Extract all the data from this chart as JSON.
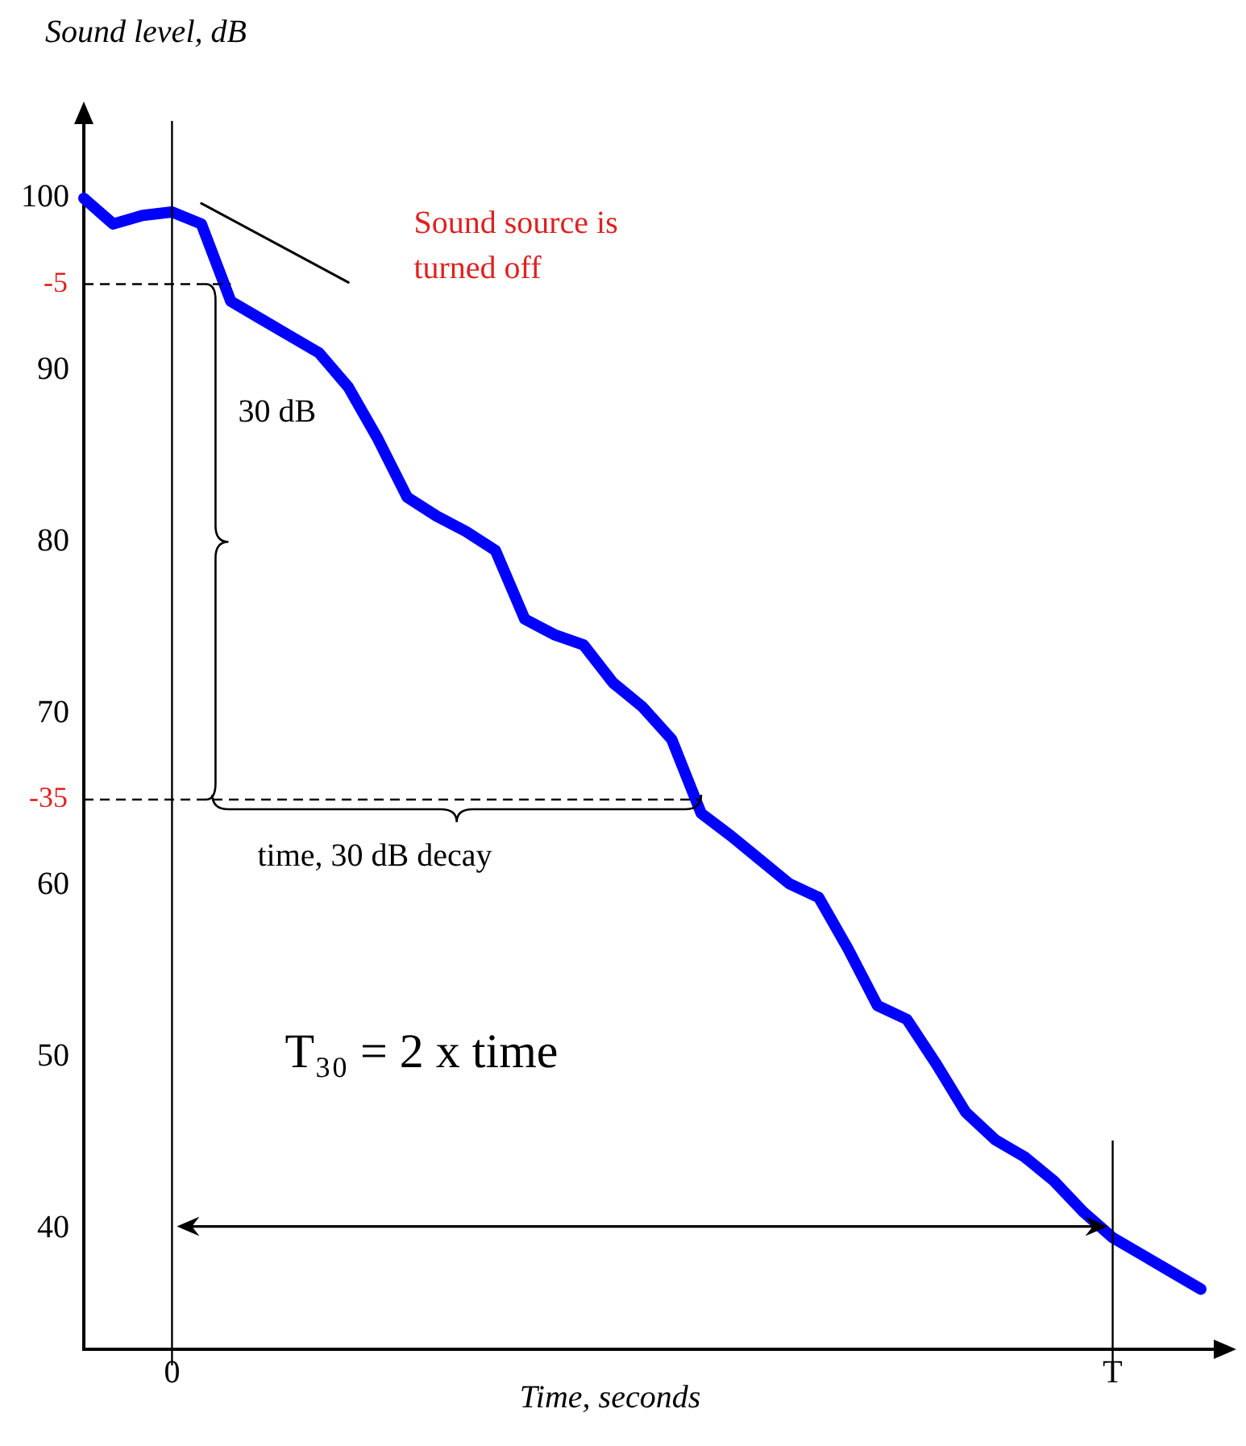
{
  "chart_data": {
    "type": "line",
    "xlabel": "Time, seconds",
    "ylabel": "Sound level, dB",
    "categories": [
      null,
      null,
      null,
      "0",
      null,
      null,
      null,
      null,
      null,
      null,
      null,
      null,
      null,
      null,
      null,
      null,
      null,
      null,
      null,
      null,
      null,
      null,
      null,
      null,
      null,
      null,
      null,
      null,
      null,
      null,
      null,
      null,
      null,
      null,
      null,
      "T",
      null,
      null,
      null
    ],
    "series": [
      {
        "color": "#0000ff",
        "values": [
          100,
          98.5,
          99,
          99.2,
          98.5,
          94,
          93,
          92,
          91,
          89,
          86,
          82.6,
          81.5,
          80.6,
          79.5,
          75.5,
          74.6,
          74,
          71.8,
          70.4,
          68.5,
          64.2,
          62.9,
          61.5,
          60.1,
          59.3,
          56.3,
          53,
          52.2,
          49.6,
          46.8,
          45.2,
          44.2,
          42.8,
          41,
          39.5,
          38.5,
          37.5,
          36.5
        ]
      },
      {
        "type": "line",
        "color": "#000000",
        "values": [
          null,
          null,
          null,
          null,
          99.7,
          null,
          null,
          null,
          null,
          95.1,
          null,
          null,
          null,
          null,
          null,
          null,
          null,
          null,
          null,
          null,
          null,
          null,
          null,
          null,
          null,
          null,
          null,
          null,
          null,
          null,
          null,
          null,
          null,
          null,
          null,
          null,
          null,
          null,
          null
        ]
      }
    ],
    "ylim": [
      33,
      104.5
    ],
    "yticks": [
      40,
      50,
      60,
      70,
      80,
      90,
      100
    ],
    "ref_lines": [
      {
        "axis": "x",
        "value": "0"
      },
      {
        "axis": "x",
        "value": "T"
      },
      {
        "axis": "y",
        "value": 95,
        "line_style": "dashed"
      },
      {
        "axis": "y",
        "value": 65,
        "line_style": "dashed"
      }
    ],
    "annotations": [
      "Sound source is turned off",
      "30 dB",
      {
        "text": "time, 30 dB decay",
        "y": 65
      },
      "T₃₀ = 2 x time",
      "-5",
      "-35"
    ],
    "grid": false,
    "legend": false,
    "marker": "none",
    "line_style": "solid"
  }
}
